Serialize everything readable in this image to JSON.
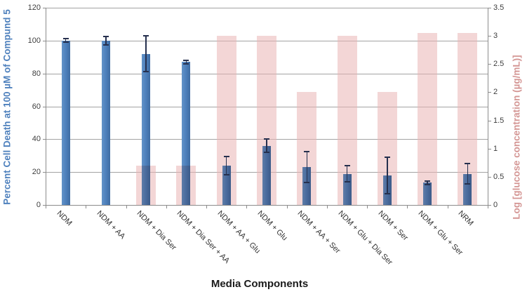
{
  "chart_data": {
    "type": "bar",
    "title": "",
    "xlabel": "Media Components",
    "categories": [
      "NDM",
      "NDM + AA",
      "NDM + Dia Ser",
      "NDM + Dia Ser + AA",
      "NDM + AA + Glu",
      "NDM + Glu",
      "NDM + AA + Ser",
      "NDM + Glu + Dia Ser",
      "NDM + Ser",
      "NDM + Glu + Ser",
      "NRM"
    ],
    "series": [
      {
        "name": "Percent Cell Death at 100 µM of Compund 5",
        "axis": "left",
        "type": "bar",
        "color": "#4F81BD",
        "values": [
          100,
          100,
          92,
          87,
          24,
          36,
          23,
          19,
          18,
          13.5,
          19
        ],
        "errors": [
          1,
          2.5,
          11,
          1,
          5.5,
          4,
          9.5,
          5,
          11,
          1,
          6
        ]
      },
      {
        "name": "Log [glucose concentration (µg/mL)]",
        "axis": "right",
        "type": "bar",
        "color": "#E9B4B4",
        "opacity": 0.55,
        "values": [
          0,
          0,
          0.7,
          0.7,
          3.0,
          3.0,
          2.0,
          3.0,
          2.0,
          3.05,
          3.05
        ]
      }
    ],
    "left_axis": {
      "title": "Percent Cell Death at 100 µM of Compund 5",
      "color": "#4F81BD",
      "min": 0,
      "max": 120,
      "step": 20,
      "tick_labels": [
        "0",
        "20",
        "40",
        "60",
        "80",
        "100",
        "120"
      ]
    },
    "right_axis": {
      "title": "Log [glucose concentration (µg/mL)]",
      "color": "#D49694",
      "min": 0,
      "max": 3.5,
      "step": 0.5,
      "tick_labels": [
        "0",
        "0.5",
        "1",
        "1.5",
        "2",
        "2.5",
        "3",
        "3.5"
      ]
    },
    "grid": "horizontal",
    "legend": "none",
    "error_bar_color": "#26304E",
    "gridline_color": "#A3A3A3"
  }
}
